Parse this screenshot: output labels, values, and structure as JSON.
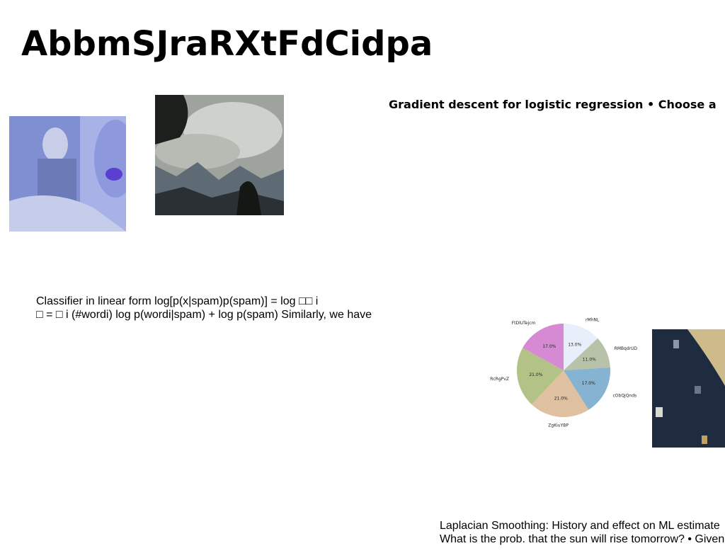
{
  "title": "AbbmSJraRXtFdCidpa",
  "heading2": "Gradient descent for logistic regression • Choose a",
  "para1": {
    "line1": "Classifier in linear form log[p(x|spam)p(spam)] = log □□ i",
    "line2": "□ = □ i (#wordi) log p(wordi|spam) + log p(spam) Similarly, we have"
  },
  "para2": {
    "line1": "Laplacian Smoothing: History and effect on ML estimate",
    "line2": "What is the prob. that the sun will rise tomorrow? • Given"
  },
  "chart_data": {
    "type": "pie",
    "labels": [
      "rMhNL",
      "RMBqdrUD",
      "cObQjQnds",
      "ZgKiuYBP",
      "RcRgPvZ",
      "FtDlUTejcm"
    ],
    "values": [
      13.0,
      11.0,
      17.0,
      21.0,
      21.0,
      17.0
    ],
    "value_labels": [
      "13.0%",
      "11.0%",
      "17.0%",
      "21.0%",
      "21.0%",
      "17.0%"
    ],
    "colors": [
      "#e8eefa",
      "#b7c2a8",
      "#86b3d1",
      "#dfc0a0",
      "#b3c287",
      "#d68ad3"
    ]
  }
}
